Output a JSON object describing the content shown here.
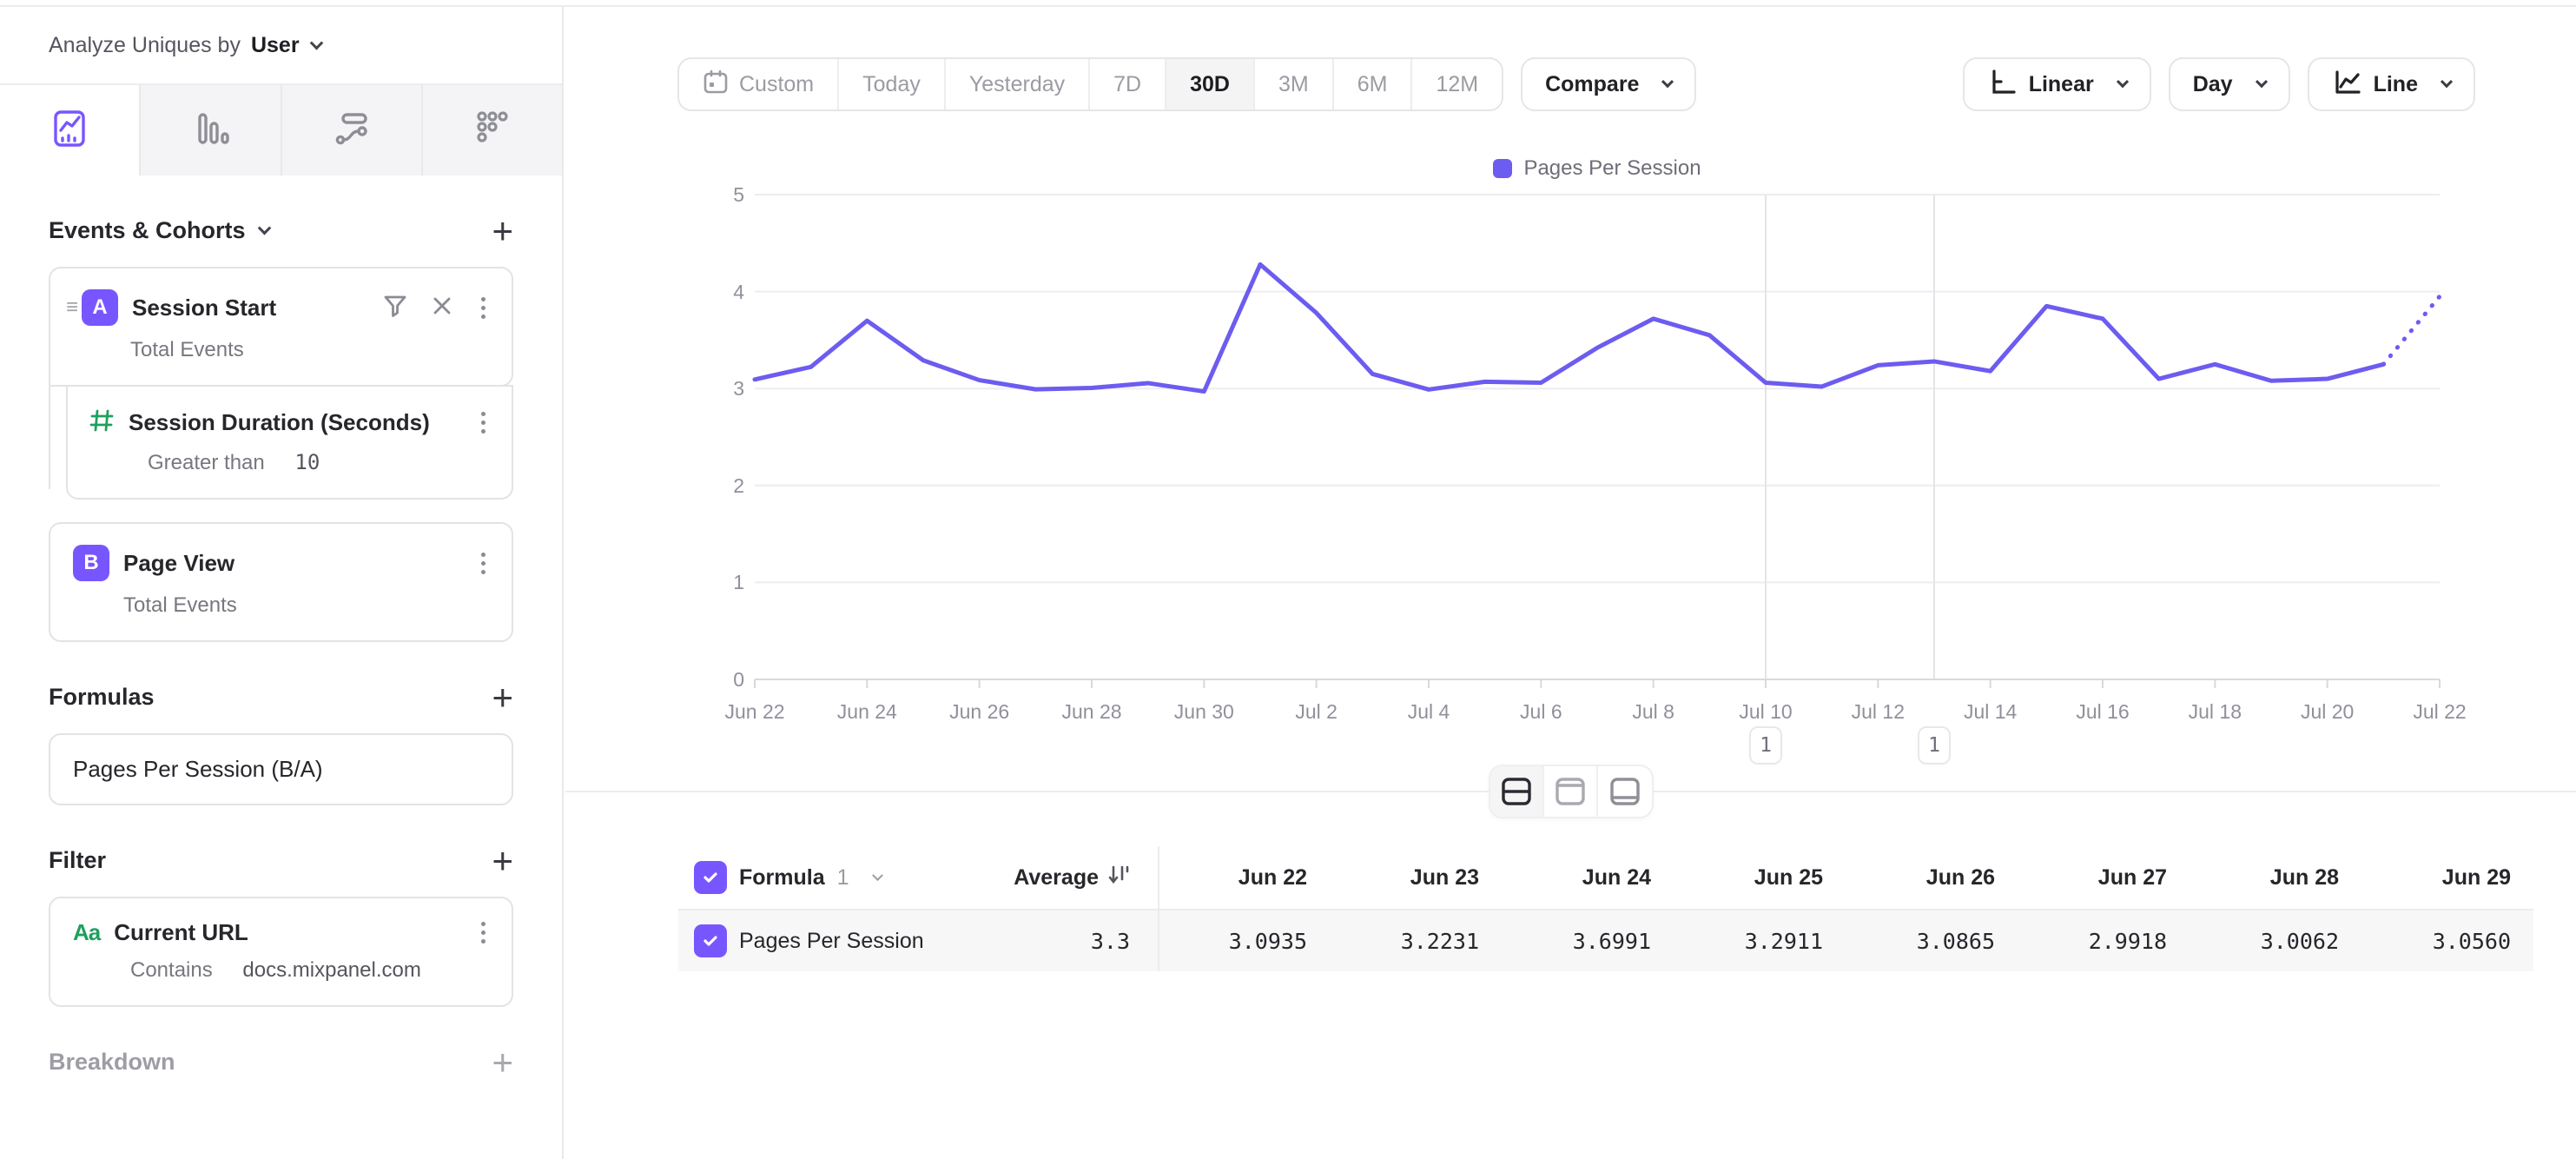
{
  "colors": {
    "accent": "#7856ff",
    "series": "#6c5cf0",
    "green": "#1fa05f"
  },
  "header": {
    "analyze_label": "Analyze Uniques by",
    "analyze_value": "User"
  },
  "sidebar": {
    "tabs": [
      {
        "name": "insights",
        "active": true
      },
      {
        "name": "funnels",
        "active": false
      },
      {
        "name": "flows",
        "active": false
      },
      {
        "name": "retention",
        "active": false
      }
    ],
    "events_section": {
      "title": "Events & Cohorts",
      "add_label": "+"
    },
    "event_a": {
      "badge": "A",
      "title": "Session Start",
      "subtitle": "Total Events"
    },
    "property_filter": {
      "title": "Session Duration (Seconds)",
      "operator": "Greater than",
      "value": "10"
    },
    "event_b": {
      "badge": "B",
      "title": "Page View",
      "subtitle": "Total Events"
    },
    "formulas": {
      "title": "Formulas",
      "add_label": "+",
      "formula": "Pages Per Session (B/A)"
    },
    "filter": {
      "title": "Filter",
      "add_label": "+",
      "type_icon": "Aa",
      "property": "Current URL",
      "operator": "Contains",
      "value": "docs.mixpanel.com"
    },
    "breakdown": {
      "title": "Breakdown",
      "add_label": "+"
    }
  },
  "toolbar": {
    "ranges": [
      {
        "label": "Custom",
        "active": false,
        "icon": "calendar"
      },
      {
        "label": "Today",
        "active": false
      },
      {
        "label": "Yesterday",
        "active": false
      },
      {
        "label": "7D",
        "active": false
      },
      {
        "label": "30D",
        "active": true
      },
      {
        "label": "3M",
        "active": false
      },
      {
        "label": "6M",
        "active": false
      },
      {
        "label": "12M",
        "active": false
      }
    ],
    "compare": "Compare",
    "scale": "Linear",
    "granularity": "Day",
    "chart_type": "Line"
  },
  "chart_data": {
    "type": "line",
    "legend": "Pages Per Session",
    "categories": [
      "Jun 22",
      "Jun 23",
      "Jun 24",
      "Jun 25",
      "Jun 26",
      "Jun 27",
      "Jun 28",
      "Jun 29",
      "Jun 30",
      "Jul 1",
      "Jul 2",
      "Jul 3",
      "Jul 4",
      "Jul 5",
      "Jul 6",
      "Jul 7",
      "Jul 8",
      "Jul 9",
      "Jul 10",
      "Jul 11",
      "Jul 12",
      "Jul 13",
      "Jul 14",
      "Jul 15",
      "Jul 16",
      "Jul 17",
      "Jul 18",
      "Jul 19",
      "Jul 20",
      "Jul 21",
      "Jul 22"
    ],
    "values": [
      3.0935,
      3.2231,
      3.6991,
      3.2911,
      3.0865,
      2.9918,
      3.0062,
      3.056,
      2.97,
      4.28,
      3.78,
      3.15,
      2.99,
      3.07,
      3.06,
      3.42,
      3.72,
      3.55,
      3.06,
      3.02,
      3.24,
      3.28,
      3.18,
      3.85,
      3.72,
      3.1,
      3.25,
      3.08,
      3.1,
      3.25
    ],
    "projection_value": 3.95,
    "ylim": [
      0,
      5
    ],
    "yticks": [
      0,
      1,
      2,
      3,
      4,
      5
    ],
    "x_tick_every": 2,
    "annotations": [
      {
        "index": 18,
        "label": "1"
      },
      {
        "index": 21,
        "label": "1"
      }
    ],
    "grid": true,
    "legend_position": "top-center"
  },
  "table": {
    "name": "Formula",
    "index": "1",
    "average_label": "Average",
    "columns": [
      "Jun 22",
      "Jun 23",
      "Jun 24",
      "Jun 25",
      "Jun 26",
      "Jun 27",
      "Jun 28",
      "Jun 29"
    ],
    "row": {
      "label": "Pages Per Session",
      "average": "3.3",
      "values": [
        "3.0935",
        "3.2231",
        "3.6991",
        "3.2911",
        "3.0865",
        "2.9918",
        "3.0062",
        "3.0560"
      ]
    }
  }
}
